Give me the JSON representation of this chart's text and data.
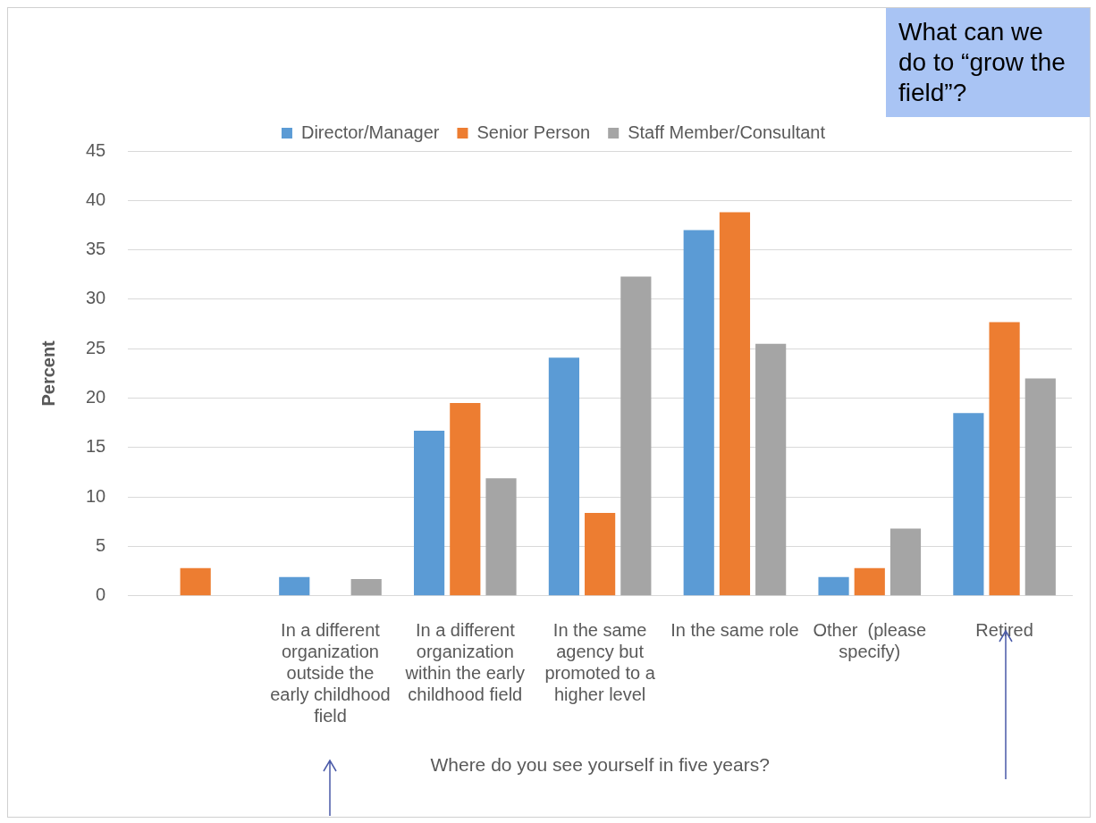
{
  "chart_data": {
    "type": "bar",
    "xlabel": "Where do you see yourself in five years?",
    "ylabel": "Percent",
    "categories": [
      null,
      "In a different organization outside the early childhood field",
      "In a different organization within the early childhood field",
      "In the same agency but promoted to a higher level",
      "In the same role",
      "Other  (please specify)",
      "Retired"
    ],
    "series": [
      {
        "name": "Director/Manager",
        "color": "#5b9bd5",
        "values": [
          null,
          1.9,
          16.7,
          24.1,
          37.0,
          1.9,
          18.5
        ]
      },
      {
        "name": "Senior Person",
        "color": "#ed7d31",
        "values": [
          2.8,
          null,
          19.5,
          8.4,
          38.8,
          2.8,
          27.7
        ]
      },
      {
        "name": "Staff Member/Consultant",
        "color": "#a5a5a5",
        "values": [
          null,
          1.7,
          11.9,
          32.3,
          25.5,
          6.8,
          22.0
        ]
      }
    ],
    "ylim": [
      0,
      45
    ],
    "yticks": [
      0,
      5,
      10,
      15,
      20,
      25,
      30,
      35,
      40,
      45
    ],
    "grid": "y",
    "legend": "top",
    "annotations": [
      "What can we do to “grow the field”?"
    ]
  }
}
